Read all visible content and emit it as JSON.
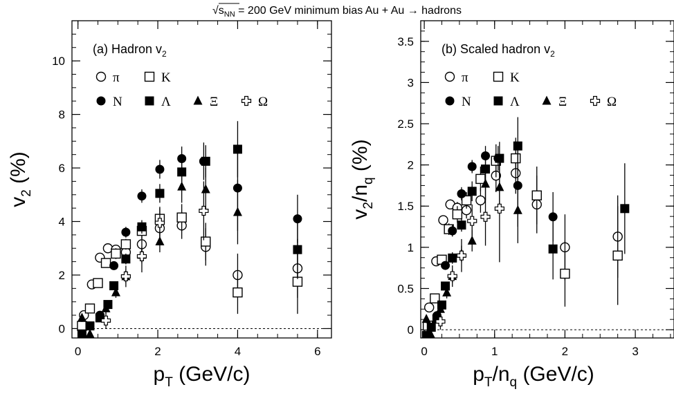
{
  "title": {
    "prefix": "√s",
    "sub": "NN",
    "rest": " = 200 GeV minimum bias Au + Au → hadrons"
  },
  "chart_data": [
    {
      "type": "scatter",
      "panel_label": {
        "text": "(a) Hadron v",
        "sub": "2"
      },
      "xlabel": {
        "main": "p",
        "sub": "T",
        "rest": " (GeV/c)"
      },
      "ylabel": {
        "main": "v",
        "sub": "2",
        "rest": " (%)"
      },
      "xlim": [
        -0.15,
        6.35
      ],
      "ylim": [
        -0.35,
        11.5
      ],
      "xticks": [
        0,
        2,
        4,
        6
      ],
      "xtick_labels": [
        "0",
        "2",
        "4",
        "6"
      ],
      "yticks": [
        0,
        2,
        4,
        6,
        8,
        10
      ],
      "ytick_labels": [
        "0",
        "2",
        "4",
        "6",
        "8",
        "10"
      ],
      "legend": {
        "rows": [
          [
            {
              "marker": "open-circle",
              "label": "π"
            },
            {
              "marker": "open-square",
              "label": "K"
            }
          ],
          [
            {
              "marker": "filled-circle",
              "label": "N"
            },
            {
              "marker": "filled-square",
              "label": "Λ"
            },
            {
              "marker": "filled-triangle",
              "label": "Ξ"
            },
            {
              "marker": "open-cross",
              "label": "Ω"
            }
          ]
        ]
      },
      "series": [
        {
          "name": "π",
          "marker": "open-circle",
          "points": [
            [
              0.15,
              0.5,
              0.1
            ],
            [
              0.35,
              1.65,
              0.1
            ],
            [
              0.55,
              2.65,
              0.1
            ],
            [
              0.75,
              3.0,
              0.1
            ],
            [
              0.95,
              2.95,
              0.15
            ],
            [
              1.2,
              2.85,
              0.2
            ],
            [
              1.6,
              3.15,
              0.3
            ],
            [
              2.05,
              3.75,
              0.4
            ],
            [
              2.6,
              3.85,
              0.5
            ],
            [
              3.2,
              3.05,
              0.7
            ],
            [
              4.0,
              2.0,
              0.8
            ],
            [
              5.5,
              2.25,
              1.1
            ]
          ]
        },
        {
          "name": "K",
          "marker": "open-square",
          "points": [
            [
              0.1,
              0.1,
              0.1
            ],
            [
              0.3,
              0.75,
              0.1
            ],
            [
              0.5,
              1.7,
              0.1
            ],
            [
              0.7,
              2.45,
              0.15
            ],
            [
              0.95,
              2.8,
              0.2
            ],
            [
              1.2,
              3.15,
              0.2
            ],
            [
              1.6,
              3.65,
              0.3
            ],
            [
              2.05,
              4.1,
              0.4
            ],
            [
              2.6,
              4.15,
              0.5
            ],
            [
              3.2,
              3.25,
              0.7
            ],
            [
              4.0,
              1.35,
              0.8
            ],
            [
              5.5,
              1.75,
              1.2
            ]
          ]
        },
        {
          "name": "N",
          "marker": "filled-circle",
          "points": [
            [
              0.55,
              0.5,
              0.15
            ],
            [
              0.9,
              2.35,
              0.15
            ],
            [
              1.2,
              3.6,
              0.2
            ],
            [
              1.6,
              4.95,
              0.25
            ],
            [
              2.05,
              5.95,
              0.35
            ],
            [
              2.6,
              6.35,
              0.45
            ],
            [
              3.15,
              6.25,
              0.7
            ],
            [
              4.0,
              5.25,
              1.6
            ],
            [
              5.5,
              4.1,
              0.9
            ]
          ]
        },
        {
          "name": "Λ",
          "marker": "filled-square",
          "points": [
            [
              0.1,
              -0.2,
              0.1
            ],
            [
              0.3,
              0.1,
              0.1
            ],
            [
              0.55,
              0.4,
              0.1
            ],
            [
              0.75,
              0.9,
              0.15
            ],
            [
              0.9,
              1.6,
              0.15
            ],
            [
              1.2,
              2.6,
              0.2
            ],
            [
              1.6,
              3.8,
              0.25
            ],
            [
              2.05,
              5.05,
              0.35
            ],
            [
              2.6,
              5.85,
              0.45
            ],
            [
              3.2,
              6.25,
              0.6
            ],
            [
              4.0,
              6.7,
              1.05
            ],
            [
              5.5,
              2.95,
              1.1
            ]
          ]
        },
        {
          "name": "Ξ",
          "marker": "filled-triangle",
          "points": [
            [
              0.1,
              0.4,
              0.15
            ],
            [
              0.3,
              -0.2,
              0.15
            ],
            [
              0.7,
              0.75,
              0.2
            ],
            [
              0.95,
              1.35,
              0.2
            ],
            [
              1.2,
              1.95,
              0.25
            ],
            [
              1.6,
              2.75,
              0.3
            ],
            [
              2.05,
              3.25,
              0.4
            ],
            [
              2.6,
              5.3,
              0.6
            ],
            [
              3.2,
              5.2,
              0.8
            ],
            [
              4.0,
              4.35,
              1.2
            ]
          ]
        },
        {
          "name": "Ω",
          "marker": "open-cross",
          "points": [
            [
              0.7,
              0.3,
              0.3
            ],
            [
              1.2,
              1.95,
              0.4
            ],
            [
              1.6,
              2.7,
              0.6
            ],
            [
              2.05,
              3.95,
              0.6
            ],
            [
              3.15,
              4.4,
              1.1
            ]
          ]
        }
      ]
    },
    {
      "type": "scatter",
      "panel_label": {
        "text": "(b) Scaled hadron v",
        "sub": "2"
      },
      "xlabel": {
        "main": "p",
        "sub": "T",
        "sep": "/n",
        "sub2": "q",
        "rest": " (GeV/c)"
      },
      "ylabel": {
        "main": "v",
        "sub": "2",
        "sep": "/n",
        "sub2": "q",
        "rest": " (%)"
      },
      "xlim": [
        -0.05,
        3.55
      ],
      "ylim": [
        -0.1,
        3.75
      ],
      "xticks": [
        0,
        1,
        2,
        3
      ],
      "xtick_labels": [
        "0",
        "1",
        "2",
        "3"
      ],
      "yticks": [
        0,
        0.5,
        1,
        1.5,
        2,
        2.5,
        3,
        3.5
      ],
      "ytick_labels": [
        "0",
        "0.5",
        "1",
        "1.5",
        "2",
        "2.5",
        "3",
        "3.5"
      ],
      "legend": {
        "rows": [
          [
            {
              "marker": "open-circle",
              "label": "π"
            },
            {
              "marker": "open-square",
              "label": "K"
            }
          ],
          [
            {
              "marker": "filled-circle",
              "label": "N"
            },
            {
              "marker": "filled-square",
              "label": "Λ"
            },
            {
              "marker": "filled-triangle",
              "label": "Ξ"
            },
            {
              "marker": "open-cross",
              "label": "Ω"
            }
          ]
        ]
      },
      "series": [
        {
          "name": "π",
          "marker": "open-circle",
          "points": [
            [
              0.07,
              0.27,
              0.05
            ],
            [
              0.17,
              0.83,
              0.05
            ],
            [
              0.27,
              1.33,
              0.05
            ],
            [
              0.37,
              1.52,
              0.06
            ],
            [
              0.47,
              1.48,
              0.07
            ],
            [
              0.6,
              1.45,
              0.1
            ],
            [
              0.8,
              1.57,
              0.15
            ],
            [
              1.02,
              1.87,
              0.2
            ],
            [
              1.3,
              1.9,
              0.25
            ],
            [
              1.6,
              1.52,
              0.35
            ],
            [
              2.0,
              1.0,
              0.4
            ],
            [
              2.75,
              1.13,
              0.5
            ]
          ]
        },
        {
          "name": "K",
          "marker": "open-square",
          "points": [
            [
              0.05,
              0.05,
              0.05
            ],
            [
              0.15,
              0.38,
              0.05
            ],
            [
              0.25,
              0.85,
              0.05
            ],
            [
              0.35,
              1.22,
              0.07
            ],
            [
              0.47,
              1.4,
              0.1
            ],
            [
              0.6,
              1.57,
              0.1
            ],
            [
              0.8,
              1.83,
              0.15
            ],
            [
              1.02,
              2.05,
              0.2
            ],
            [
              1.3,
              2.08,
              0.25
            ],
            [
              1.6,
              1.63,
              0.35
            ],
            [
              2.0,
              0.68,
              0.4
            ],
            [
              2.75,
              0.9,
              0.6
            ]
          ]
        },
        {
          "name": "N",
          "marker": "filled-circle",
          "points": [
            [
              0.18,
              0.17,
              0.05
            ],
            [
              0.3,
              0.78,
              0.05
            ],
            [
              0.4,
              1.2,
              0.07
            ],
            [
              0.53,
              1.65,
              0.08
            ],
            [
              0.68,
              1.98,
              0.08
            ],
            [
              0.87,
              2.11,
              0.12
            ],
            [
              1.05,
              2.08,
              0.15
            ],
            [
              1.33,
              1.75,
              0.5
            ],
            [
              1.83,
              1.37,
              0.3
            ]
          ]
        },
        {
          "name": "Λ",
          "marker": "filled-square",
          "points": [
            [
              0.03,
              -0.07,
              0.03
            ],
            [
              0.1,
              0.03,
              0.03
            ],
            [
              0.18,
              0.13,
              0.03
            ],
            [
              0.25,
              0.3,
              0.05
            ],
            [
              0.3,
              0.53,
              0.05
            ],
            [
              0.4,
              0.87,
              0.07
            ],
            [
              0.53,
              1.27,
              0.08
            ],
            [
              0.68,
              1.68,
              0.12
            ],
            [
              0.87,
              1.95,
              0.15
            ],
            [
              1.07,
              2.08,
              0.2
            ],
            [
              1.33,
              2.23,
              0.35
            ],
            [
              1.83,
              0.98,
              0.37
            ],
            [
              2.85,
              1.47,
              0.55
            ]
          ]
        },
        {
          "name": "Ξ",
          "marker": "filled-triangle",
          "points": [
            [
              0.03,
              0.13,
              0.05
            ],
            [
              0.1,
              -0.07,
              0.05
            ],
            [
              0.23,
              0.25,
              0.07
            ],
            [
              0.32,
              0.45,
              0.07
            ],
            [
              0.4,
              0.65,
              0.08
            ],
            [
              0.53,
              0.92,
              0.1
            ],
            [
              0.68,
              1.08,
              0.13
            ],
            [
              0.87,
              1.77,
              0.2
            ],
            [
              1.07,
              1.73,
              0.27
            ],
            [
              1.33,
              1.45,
              0.4
            ]
          ]
        },
        {
          "name": "Ω",
          "marker": "open-cross",
          "points": [
            [
              0.23,
              0.1,
              0.1
            ],
            [
              0.4,
              0.65,
              0.13
            ],
            [
              0.53,
              0.9,
              0.2
            ],
            [
              0.68,
              1.32,
              0.2
            ],
            [
              0.87,
              1.37,
              0.35
            ],
            [
              1.07,
              1.47,
              0.65
            ]
          ]
        }
      ]
    }
  ]
}
